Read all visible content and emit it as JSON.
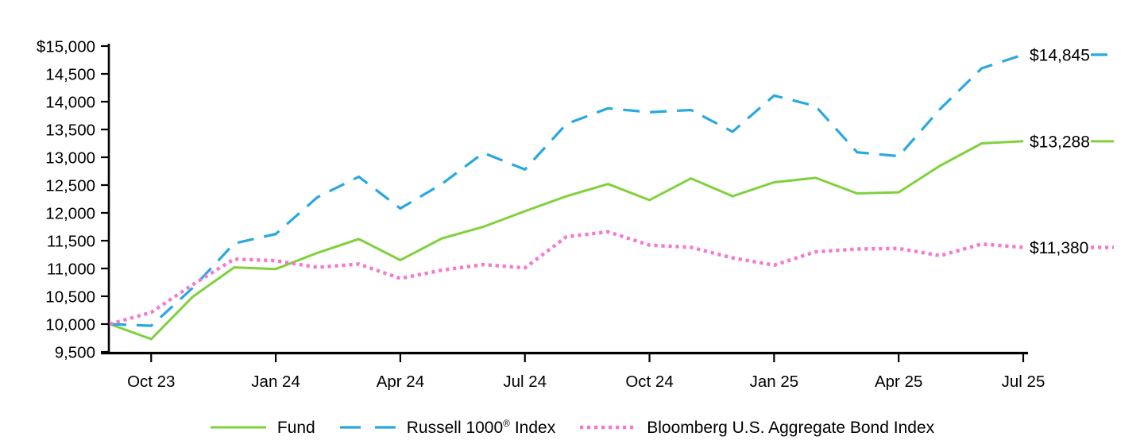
{
  "chart_data": {
    "type": "line",
    "title": "",
    "description": "Growth of $10,000 line chart comparing Fund, Russell 1000 Index and Bloomberg U.S. Aggregate Bond Index from Sep 2023 through Jul 2025",
    "x_tick_labels": [
      "Oct 23",
      "Jan 24",
      "Apr 24",
      "Jul 24",
      "Oct 24",
      "Jan 25",
      "Apr 25",
      "Jul 25"
    ],
    "x_tick_indices": [
      1,
      4,
      7,
      10,
      13,
      16,
      19,
      22
    ],
    "n_points": 23,
    "y_ticks": [
      9500,
      10000,
      10500,
      11000,
      11500,
      12000,
      12500,
      13000,
      13500,
      14000,
      14500,
      15000
    ],
    "y_tick_labels": [
      "9,500",
      "10,000",
      "10,500",
      "11,000",
      "11,500",
      "12,000",
      "12,500",
      "13,000",
      "13,500",
      "14,000",
      "14,500",
      "$15,000"
    ],
    "ylim": [
      9500,
      15000
    ],
    "grid": false,
    "legend_position": "bottom-center",
    "axis_color": "#000000",
    "series": [
      {
        "name": "Fund",
        "style": "solid",
        "color": "#7FD13B",
        "end_label": "$13,288",
        "values": [
          10000,
          9730,
          10490,
          11020,
          10990,
          11280,
          11530,
          11150,
          11540,
          11750,
          12030,
          12300,
          12520,
          12230,
          12620,
          12300,
          12550,
          12630,
          12350,
          12370,
          12850,
          13250,
          13288
        ]
      },
      {
        "name": "Russell 1000® Index",
        "style": "dashed",
        "color": "#29A8E0",
        "end_label": "$14,845",
        "values": [
          10000,
          9970,
          10650,
          11450,
          11620,
          12280,
          12650,
          12080,
          12520,
          13080,
          12780,
          13600,
          13880,
          13810,
          13850,
          13460,
          14110,
          13920,
          13090,
          13020,
          13870,
          14600,
          14845
        ]
      },
      {
        "name": "Bloomberg U.S. Aggregate Bond Index",
        "style": "dotted",
        "color": "#F379D1",
        "end_label": "$11,380",
        "values": [
          10000,
          10210,
          10710,
          11170,
          11140,
          11020,
          11080,
          10820,
          10970,
          11070,
          11010,
          11570,
          11660,
          11420,
          11380,
          11190,
          11060,
          11300,
          11350,
          11360,
          11230,
          11440,
          11380
        ]
      }
    ]
  }
}
